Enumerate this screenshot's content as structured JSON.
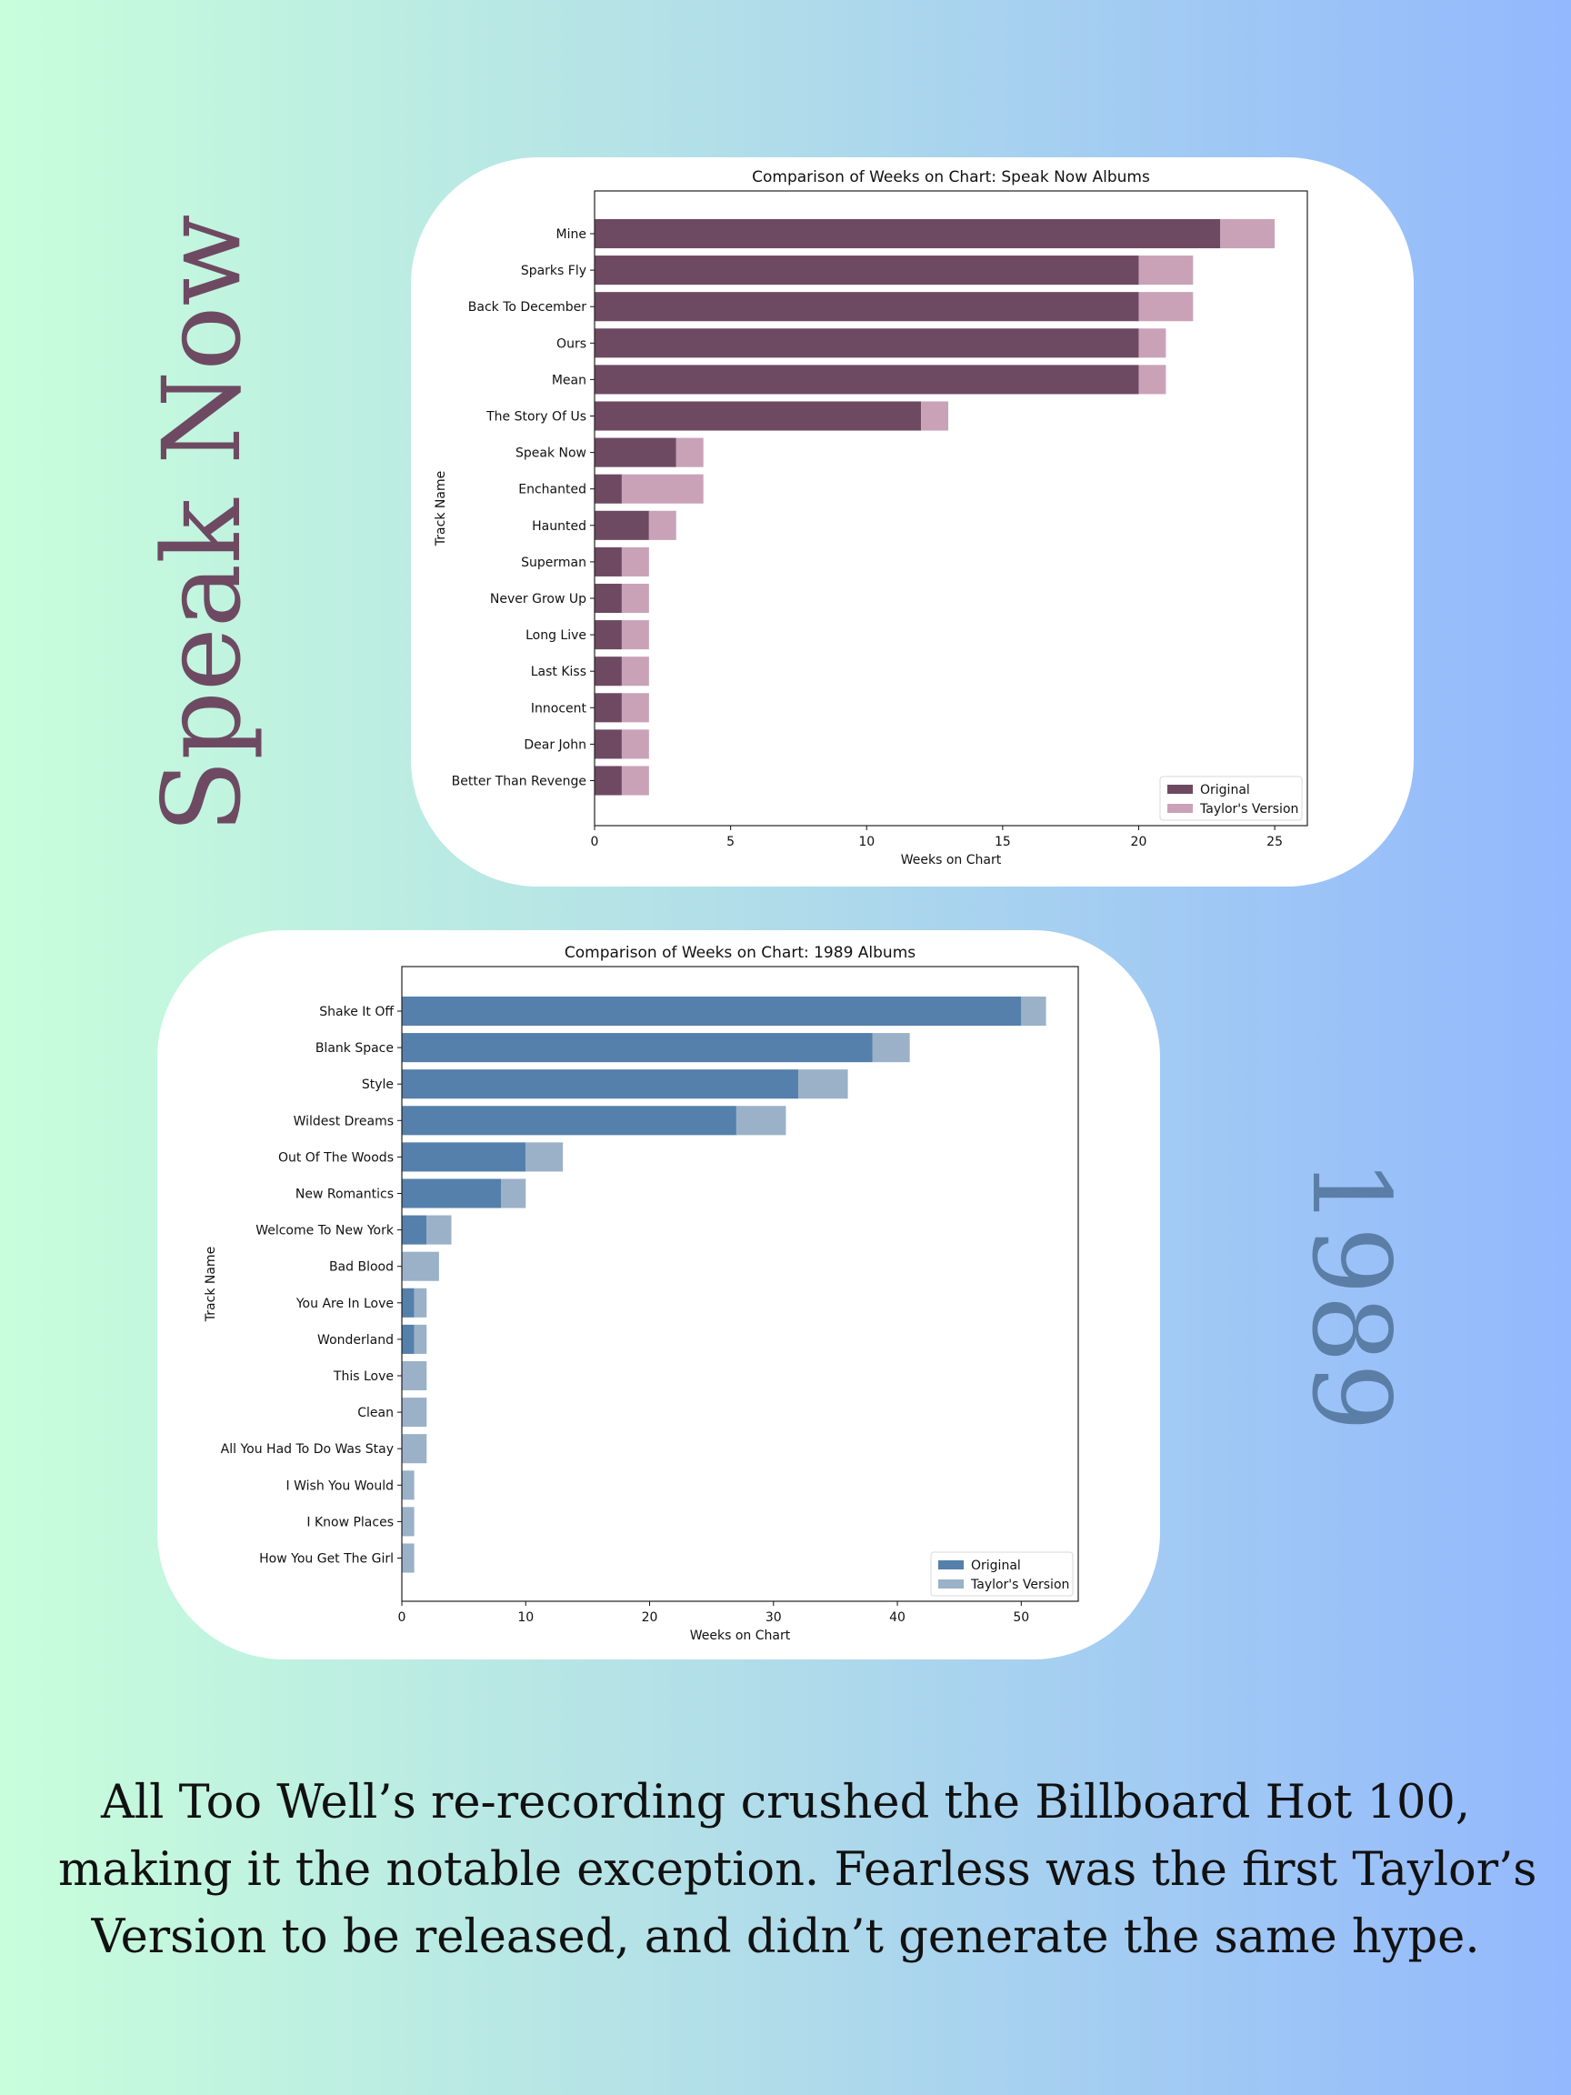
{
  "side_titles": {
    "speak_now": "Speak Now",
    "album_1989": "1989"
  },
  "caption": {
    "line1": "All Too Well’s re-recording crushed the Billboard Hot 100,",
    "line2": "making it the notable exception. Fearless was the first Taylor’s",
    "line3": "Version to be released, and didn’t generate the same hype."
  },
  "chart_data": [
    {
      "type": "bar",
      "orientation": "horizontal",
      "stacked": true,
      "title": "Comparison of Weeks on Chart: Speak Now Albums",
      "xlabel": "Weeks on Chart",
      "ylabel": "Track Name",
      "xlim": [
        0,
        26.2
      ],
      "xticks": [
        0,
        5,
        10,
        15,
        20,
        25
      ],
      "categories": [
        "Mine",
        "Sparks Fly",
        "Back To December",
        "Ours",
        "Mean",
        "The Story Of Us",
        "Speak Now",
        "Enchanted",
        "Haunted",
        "Superman",
        "Never Grow Up",
        "Long Live",
        "Last Kiss",
        "Innocent",
        "Dear John",
        "Better Than Revenge"
      ],
      "series": [
        {
          "name": "Original",
          "color": "#6e4a62",
          "values": [
            23,
            20,
            20,
            20,
            20,
            12,
            3,
            1,
            2,
            1,
            1,
            1,
            1,
            1,
            1,
            1
          ]
        },
        {
          "name": "Taylor's Version",
          "color": "#c9a2b8",
          "values": [
            2,
            2,
            2,
            1,
            1,
            1,
            1,
            3,
            1,
            1,
            1,
            1,
            1,
            1,
            1,
            1
          ]
        }
      ],
      "legend": "lower right"
    },
    {
      "type": "bar",
      "orientation": "horizontal",
      "stacked": true,
      "title": "Comparison of Weeks on Chart: 1989 Albums",
      "xlabel": "Weeks on Chart",
      "ylabel": "Track Name",
      "xlim": [
        0,
        54.6
      ],
      "xticks": [
        0,
        10,
        20,
        30,
        40,
        50
      ],
      "categories": [
        "Shake It Off",
        "Blank Space",
        "Style",
        "Wildest Dreams",
        "Out Of The Woods",
        "New Romantics",
        "Welcome To New York",
        "Bad Blood",
        "You Are In Love",
        "Wonderland",
        "This Love",
        "Clean",
        "All You Had To Do Was Stay",
        "I Wish You Would",
        "I Know Places",
        "How You Get The Girl"
      ],
      "series": [
        {
          "name": "Original",
          "color": "#5580ab",
          "values": [
            50,
            38,
            32,
            27,
            10,
            8,
            2,
            0,
            1,
            1,
            0,
            0,
            0,
            0,
            0,
            0
          ]
        },
        {
          "name": "Taylor's Version",
          "color": "#9ab1c8",
          "values": [
            2,
            3,
            4,
            4,
            3,
            2,
            2,
            3,
            1,
            1,
            2,
            2,
            2,
            1,
            1,
            1
          ]
        }
      ],
      "legend": "lower right"
    }
  ]
}
